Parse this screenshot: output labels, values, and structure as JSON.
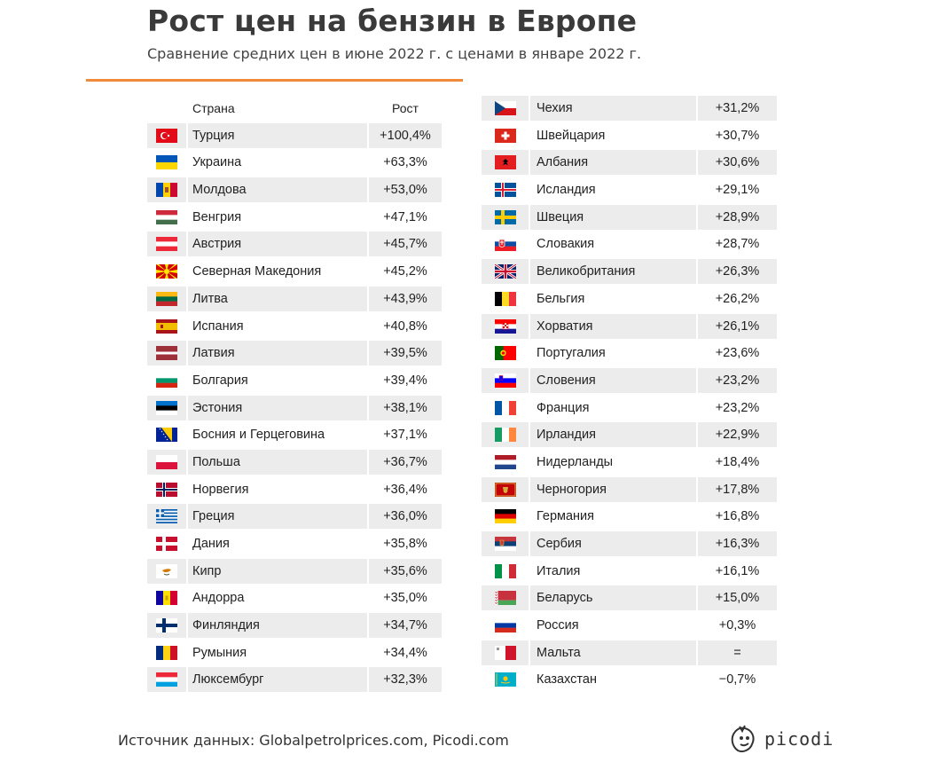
{
  "title": "Рост цен на бензин в Европе",
  "subtitle": "Сравнение средних цен в июне 2022 г. с ценами в январе 2022 г.",
  "columns": {
    "country": "Страна",
    "growth": "Рост"
  },
  "accent_color": "#f08a3c",
  "left_rows": [
    {
      "name": "Турция",
      "value": "+100,4%",
      "flag": "turkey-flag"
    },
    {
      "name": "Украина",
      "value": "+63,3%",
      "flag": "ukraine-flag"
    },
    {
      "name": "Молдова",
      "value": "+53,0%",
      "flag": "moldova-flag"
    },
    {
      "name": "Венгрия",
      "value": "+47,1%",
      "flag": "hungary-flag"
    },
    {
      "name": "Австрия",
      "value": "+45,7%",
      "flag": "austria-flag"
    },
    {
      "name": "Северная Македония",
      "value": "+45,2%",
      "flag": "north-macedonia-flag"
    },
    {
      "name": "Литва",
      "value": "+43,9%",
      "flag": "lithuania-flag"
    },
    {
      "name": "Испания",
      "value": "+40,8%",
      "flag": "spain-flag"
    },
    {
      "name": "Латвия",
      "value": "+39,5%",
      "flag": "latvia-flag"
    },
    {
      "name": "Болгария",
      "value": "+39,4%",
      "flag": "bulgaria-flag"
    },
    {
      "name": "Эстония",
      "value": "+38,1%",
      "flag": "estonia-flag"
    },
    {
      "name": "Босния и Герцеговина",
      "value": "+37,1%",
      "flag": "bosnia-flag"
    },
    {
      "name": "Польша",
      "value": "+36,7%",
      "flag": "poland-flag"
    },
    {
      "name": "Норвегия",
      "value": "+36,4%",
      "flag": "norway-flag"
    },
    {
      "name": "Греция",
      "value": "+36,0%",
      "flag": "greece-flag"
    },
    {
      "name": "Дания",
      "value": "+35,8%",
      "flag": "denmark-flag"
    },
    {
      "name": "Кипр",
      "value": "+35,6%",
      "flag": "cyprus-flag"
    },
    {
      "name": "Андорра",
      "value": "+35,0%",
      "flag": "andorra-flag"
    },
    {
      "name": "Финляндия",
      "value": "+34,7%",
      "flag": "finland-flag"
    },
    {
      "name": "Румыния",
      "value": "+34,4%",
      "flag": "romania-flag"
    },
    {
      "name": "Люксембург",
      "value": "+32,3%",
      "flag": "luxembourg-flag"
    }
  ],
  "right_rows": [
    {
      "name": "Чехия",
      "value": "+31,2%",
      "flag": "czechia-flag"
    },
    {
      "name": "Швейцария",
      "value": "+30,7%",
      "flag": "switzerland-flag"
    },
    {
      "name": "Албания",
      "value": "+30,6%",
      "flag": "albania-flag"
    },
    {
      "name": "Исландия",
      "value": "+29,1%",
      "flag": "iceland-flag"
    },
    {
      "name": "Швеция",
      "value": "+28,9%",
      "flag": "sweden-flag"
    },
    {
      "name": "Словакия",
      "value": "+28,7%",
      "flag": "slovakia-flag"
    },
    {
      "name": "Великобритания",
      "value": "+26,3%",
      "flag": "uk-flag"
    },
    {
      "name": "Бельгия",
      "value": "+26,2%",
      "flag": "belgium-flag"
    },
    {
      "name": "Хорватия",
      "value": "+26,1%",
      "flag": "croatia-flag"
    },
    {
      "name": "Португалия",
      "value": "+23,6%",
      "flag": "portugal-flag"
    },
    {
      "name": "Словения",
      "value": "+23,2%",
      "flag": "slovenia-flag"
    },
    {
      "name": "Франция",
      "value": "+23,2%",
      "flag": "france-flag"
    },
    {
      "name": "Ирландия",
      "value": "+22,9%",
      "flag": "ireland-flag"
    },
    {
      "name": "Нидерланды",
      "value": "+18,4%",
      "flag": "netherlands-flag"
    },
    {
      "name": "Черногория",
      "value": "+17,8%",
      "flag": "montenegro-flag"
    },
    {
      "name": "Германия",
      "value": "+16,8%",
      "flag": "germany-flag"
    },
    {
      "name": "Сербия",
      "value": "+16,3%",
      "flag": "serbia-flag"
    },
    {
      "name": "Италия",
      "value": "+16,1%",
      "flag": "italy-flag"
    },
    {
      "name": "Беларусь",
      "value": "+15,0%",
      "flag": "belarus-flag"
    },
    {
      "name": "Россия",
      "value": "+0,3%",
      "flag": "russia-flag"
    },
    {
      "name": "Мальта",
      "value": "=",
      "flag": "malta-flag"
    },
    {
      "name": "Казахстан",
      "value": "−0,7%",
      "flag": "kazakhstan-flag"
    }
  ],
  "footer": "Источник данных: Globalpetrolprices.com, Picodi.com",
  "logo": "picodi"
}
